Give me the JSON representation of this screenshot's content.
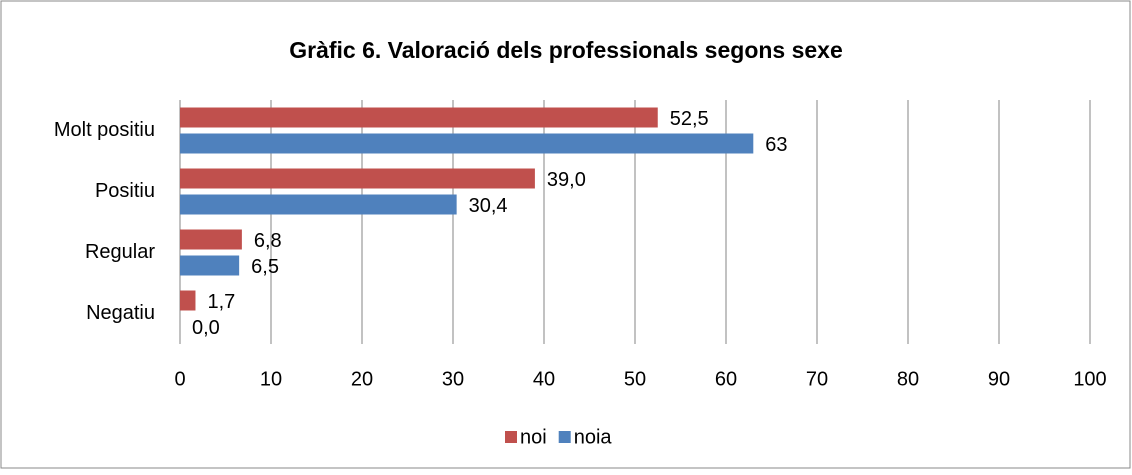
{
  "chart_data": {
    "type": "hbar",
    "title": "Gràfic 6. Valoració dels professionals segons sexe",
    "categories": [
      "Molt positiu",
      "Positiu",
      "Regular",
      "Negatiu"
    ],
    "series": [
      {
        "name": "noi",
        "color": "#c0504d",
        "values": [
          52.5,
          39.0,
          6.8,
          1.7
        ],
        "value_labels": [
          "52,5",
          "39,0",
          "6,8",
          "1,7"
        ]
      },
      {
        "name": "noia",
        "color": "#4f81bd",
        "values": [
          63,
          30.4,
          6.5,
          0.0
        ],
        "value_labels": [
          "63",
          "30,4",
          "6,5",
          "0,0"
        ]
      }
    ],
    "xlim": [
      0,
      100
    ],
    "xticks": [
      0,
      10,
      20,
      30,
      40,
      50,
      60,
      70,
      80,
      90,
      100
    ],
    "grid": true,
    "legend": "bottom"
  }
}
